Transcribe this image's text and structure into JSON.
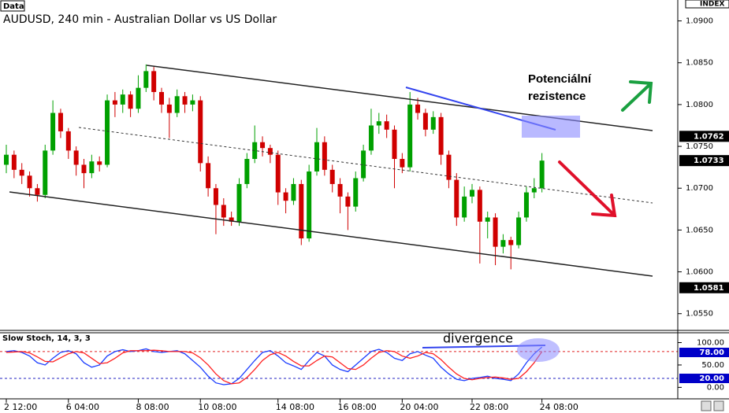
{
  "chart_data": {
    "type": "candlestick",
    "panel_label": "Data",
    "title": "AUDUSD, 240 min - Australian Dollar vs US Dollar",
    "corner_label": "INDEX",
    "annotations": [
      "Potenciální",
      "rezistence",
      "divergence"
    ],
    "up_color": "#00a000",
    "down_color": "#d00000",
    "categories": [
      "2 12:00",
      null,
      null,
      null,
      null,
      null,
      null,
      null,
      "6 04:00",
      null,
      null,
      null,
      null,
      null,
      null,
      null,
      null,
      "8 08:00",
      null,
      null,
      null,
      null,
      null,
      null,
      null,
      "10 08:00",
      null,
      null,
      null,
      null,
      null,
      null,
      null,
      null,
      null,
      "14 08:00",
      null,
      null,
      null,
      null,
      null,
      null,
      null,
      "16 08:00",
      null,
      null,
      null,
      null,
      null,
      null,
      null,
      "20 04:00",
      null,
      null,
      null,
      null,
      null,
      null,
      null,
      null,
      "22 08:00",
      null,
      null,
      null,
      null,
      null,
      null,
      null,
      null,
      "24 08:00"
    ],
    "ohlc": [
      [
        1.0728,
        1.0752,
        1.0718,
        1.074
      ],
      [
        1.074,
        1.0745,
        1.0712,
        1.0722
      ],
      [
        1.0722,
        1.073,
        1.0705,
        1.0715
      ],
      [
        1.0715,
        1.072,
        1.069,
        1.07
      ],
      [
        1.07,
        1.0705,
        1.0684,
        1.0692
      ],
      [
        1.0692,
        1.0752,
        1.0688,
        1.0745
      ],
      [
        1.0745,
        1.0805,
        1.074,
        1.079
      ],
      [
        1.079,
        1.0795,
        1.076,
        1.0768
      ],
      [
        1.0768,
        1.0772,
        1.0735,
        1.0745
      ],
      [
        1.0745,
        1.075,
        1.0715,
        1.0728
      ],
      [
        1.0728,
        1.0735,
        1.07,
        1.0718
      ],
      [
        1.0718,
        1.074,
        1.0712,
        1.0732
      ],
      [
        1.0732,
        1.0738,
        1.072,
        1.0728
      ],
      [
        1.0728,
        1.0812,
        1.0725,
        1.0805
      ],
      [
        1.0805,
        1.0815,
        1.0785,
        1.08
      ],
      [
        1.08,
        1.0818,
        1.079,
        1.0812
      ],
      [
        1.0812,
        1.0816,
        1.0785,
        1.0795
      ],
      [
        1.0795,
        1.0835,
        1.079,
        1.082
      ],
      [
        1.082,
        1.0848,
        1.0815,
        1.084
      ],
      [
        1.084,
        1.0845,
        1.0805,
        1.0815
      ],
      [
        1.0815,
        1.082,
        1.079,
        1.08
      ],
      [
        1.08,
        1.0808,
        1.076,
        1.079
      ],
      [
        1.079,
        1.0818,
        1.0785,
        1.081
      ],
      [
        1.081,
        1.0815,
        1.079,
        1.08
      ],
      [
        1.08,
        1.0812,
        1.0792,
        1.0805
      ],
      [
        1.0805,
        1.081,
        1.072,
        1.073
      ],
      [
        1.073,
        1.0738,
        1.069,
        1.07
      ],
      [
        1.07,
        1.0705,
        1.0645,
        1.068
      ],
      [
        1.068,
        1.0688,
        1.0655,
        1.0665
      ],
      [
        1.0665,
        1.0672,
        1.0655,
        1.066
      ],
      [
        1.066,
        1.0712,
        1.0655,
        1.0705
      ],
      [
        1.0705,
        1.0742,
        1.07,
        1.0735
      ],
      [
        1.0735,
        1.0775,
        1.073,
        1.0755
      ],
      [
        1.0755,
        1.0762,
        1.0738,
        1.0748
      ],
      [
        1.0748,
        1.0752,
        1.073,
        1.074
      ],
      [
        1.074,
        1.0745,
        1.068,
        1.0695
      ],
      [
        1.0695,
        1.07,
        1.067,
        1.0685
      ],
      [
        1.0685,
        1.0712,
        1.068,
        1.0705
      ],
      [
        1.0705,
        1.071,
        1.0632,
        1.064
      ],
      [
        1.064,
        1.0728,
        1.0636,
        1.072
      ],
      [
        1.072,
        1.0772,
        1.0715,
        1.0755
      ],
      [
        1.0755,
        1.0762,
        1.0715,
        1.0722
      ],
      [
        1.0722,
        1.0728,
        1.0695,
        1.0705
      ],
      [
        1.0705,
        1.0712,
        1.067,
        1.069
      ],
      [
        1.069,
        1.0695,
        1.065,
        1.0678
      ],
      [
        1.0678,
        1.072,
        1.0672,
        1.0712
      ],
      [
        1.0712,
        1.0752,
        1.0708,
        1.0745
      ],
      [
        1.0745,
        1.0795,
        1.074,
        1.0775
      ],
      [
        1.0775,
        1.079,
        1.0765,
        1.078
      ],
      [
        1.078,
        1.0788,
        1.076,
        1.077
      ],
      [
        1.077,
        1.0775,
        1.07,
        1.0735
      ],
      [
        1.0735,
        1.0742,
        1.0718,
        1.0725
      ],
      [
        1.0725,
        1.0815,
        1.072,
        1.08
      ],
      [
        1.08,
        1.0808,
        1.0782,
        1.079
      ],
      [
        1.079,
        1.0795,
        1.0762,
        1.077
      ],
      [
        1.077,
        1.0792,
        1.0765,
        1.0785
      ],
      [
        1.0785,
        1.079,
        1.0728,
        1.074
      ],
      [
        1.074,
        1.0745,
        1.07,
        1.071
      ],
      [
        1.071,
        1.0718,
        1.0655,
        1.0665
      ],
      [
        1.0665,
        1.0702,
        1.066,
        1.069
      ],
      [
        1.069,
        1.0705,
        1.0682,
        1.0698
      ],
      [
        1.0698,
        1.0702,
        1.061,
        1.066
      ],
      [
        1.066,
        1.0672,
        1.064,
        1.0665
      ],
      [
        1.0665,
        1.067,
        1.0608,
        1.063
      ],
      [
        1.063,
        1.0645,
        1.0622,
        1.0638
      ],
      [
        1.0638,
        1.0642,
        1.0603,
        1.0632
      ],
      [
        1.0632,
        1.0672,
        1.0628,
        1.0665
      ],
      [
        1.0665,
        1.0702,
        1.066,
        1.0695
      ],
      [
        1.0695,
        1.0712,
        1.0688,
        1.07
      ],
      [
        1.07,
        1.0742,
        1.0695,
        1.0733
      ]
    ],
    "ylim": [
      1.053,
      1.0925
    ],
    "yticks": [
      {
        "value": 1.09,
        "label": "1.0900"
      },
      {
        "value": 1.085,
        "label": "1.0850"
      },
      {
        "value": 1.08,
        "label": "1.0800"
      },
      {
        "value": 1.075,
        "label": "1.0750"
      },
      {
        "value": 1.07,
        "label": "1.0700"
      },
      {
        "value": 1.065,
        "label": "1.0650"
      },
      {
        "value": 1.06,
        "label": "1.0600"
      },
      {
        "value": 1.055,
        "label": "1.0550"
      }
    ],
    "price_markers": [
      1.0762,
      1.0733,
      1.0581
    ],
    "indicator": {
      "type": "line",
      "title": "Slow Stoch, 14, 3, 3",
      "series": [
        {
          "name": "Main",
          "color": "#1a3cff",
          "values": [
            80,
            82,
            78,
            70,
            55,
            50,
            65,
            78,
            82,
            75,
            55,
            45,
            50,
            70,
            80,
            84,
            80,
            82,
            86,
            80,
            78,
            80,
            82,
            75,
            60,
            45,
            25,
            10,
            6,
            8,
            20,
            40,
            60,
            78,
            82,
            70,
            55,
            48,
            40,
            60,
            78,
            70,
            50,
            40,
            35,
            50,
            65,
            80,
            85,
            78,
            65,
            60,
            75,
            80,
            72,
            65,
            45,
            30,
            18,
            15,
            20,
            22,
            25,
            20,
            18,
            15,
            30,
            55,
            75,
            90
          ]
        },
        {
          "name": "Signal",
          "color": "#ff2020",
          "values": [
            78,
            79,
            80,
            77,
            68,
            58,
            57,
            66,
            75,
            80,
            77,
            65,
            53,
            55,
            65,
            77,
            82,
            82,
            82,
            83,
            82,
            80,
            80,
            80,
            77,
            66,
            50,
            30,
            15,
            8,
            10,
            22,
            40,
            60,
            73,
            78,
            70,
            58,
            48,
            48,
            60,
            70,
            68,
            55,
            42,
            40,
            50,
            65,
            78,
            82,
            80,
            70,
            65,
            70,
            78,
            75,
            62,
            45,
            30,
            20,
            17,
            20,
            22,
            23,
            21,
            18,
            20,
            35,
            55,
            80
          ]
        }
      ],
      "ylim": [
        0,
        100
      ],
      "yticks": [
        {
          "value": 100,
          "label": "100.00"
        },
        {
          "value": 50,
          "label": "50.00"
        },
        {
          "value": 0,
          "label": "0.00"
        }
      ],
      "markers": [
        {
          "value": 78,
          "label": "78.00"
        },
        {
          "value": 20,
          "label": "20.00"
        }
      ],
      "levels": [
        80,
        20
      ]
    }
  }
}
